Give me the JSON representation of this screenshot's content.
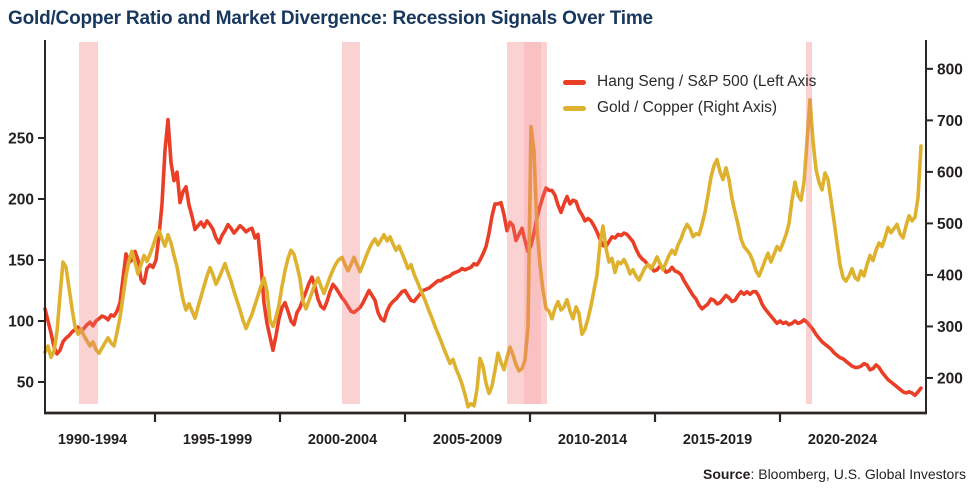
{
  "title": "Gold/Copper Ratio and Market Divergence: Recession Signals Over Time",
  "source": {
    "label": "Source",
    "text": ": Bloomberg, U.S. Global Investors"
  },
  "legend": [
    {
      "label": "Hang Seng / S&P 500 (Left Axis",
      "color": "#EA3E27"
    },
    {
      "label": "Gold / Copper (Right Axis)",
      "color": "#DEB22E"
    }
  ],
  "colors": {
    "red_line": "#EA3E27",
    "gold_line": "#DEB22E",
    "recession_band": "#F37373",
    "axis": "#2A2624",
    "title_navy": "#17375C",
    "text": "#231F20",
    "background": "#FFFFFF"
  },
  "chart_data": {
    "type": "line",
    "title": "Gold/Copper Ratio and Market Divergence: Recession Signals Over Time",
    "legend_position": "top-right",
    "grid": false,
    "x_axis": {
      "range_years": [
        1990.6,
        2025.84
      ],
      "tick_years": [
        1995,
        2000,
        2005,
        2010,
        2015,
        2020
      ],
      "bucket_edge_years": [
        1990,
        1995,
        2000,
        2005,
        2010,
        2015,
        2020,
        2025
      ],
      "bucket_labels": [
        "1990-1994",
        "1995-1999",
        "2000-2004",
        "2005-2009",
        "2010-2014",
        "2015-2019",
        "2020-2024"
      ]
    },
    "left_axis": {
      "series": "Hang Seng / S&P 500",
      "ticks": [
        50,
        100,
        150,
        200,
        250
      ],
      "range": [
        24.6,
        330.3
      ]
    },
    "right_axis": {
      "series": "Gold / Copper",
      "ticks": [
        200,
        300,
        400,
        500,
        600,
        700,
        800
      ],
      "range": [
        132,
        856
      ]
    },
    "recession_bands": [
      {
        "from": 1991.96,
        "to": 1992.72
      },
      {
        "from": 2002.48,
        "to": 2003.2
      },
      {
        "from": 2009.08,
        "to": 2010.68
      },
      {
        "from": 2021.04,
        "to": 2021.28
      }
    ],
    "recession_band_inner": {
      "from": 2009.76,
      "to": 2010.44
    },
    "series": [
      {
        "name": "Hang Seng / S&P 500",
        "axis": "left",
        "color": "#EA3E27",
        "x0": 1990.6,
        "dx": 0.12,
        "values": [
          110,
          100,
          90,
          79,
          73,
          76,
          83,
          86,
          88,
          91,
          93,
          95,
          91,
          94,
          97,
          99,
          96,
          100,
          102,
          104,
          103,
          101,
          105,
          104,
          108,
          115,
          135,
          155,
          148,
          150,
          157,
          150,
          134,
          131,
          143,
          146,
          144,
          150,
          170,
          196,
          240,
          265,
          230,
          215,
          222,
          197,
          206,
          210,
          195,
          186,
          175,
          178,
          181,
          177,
          182,
          179,
          175,
          168,
          164,
          170,
          174,
          179,
          176,
          172,
          175,
          178,
          176,
          173,
          175,
          176,
          168,
          171,
          145,
          115,
          98,
          87,
          76,
          88,
          102,
          111,
          115,
          108,
          100,
          97,
          107,
          111,
          118,
          124,
          131,
          136,
          128,
          118,
          112,
          110,
          116,
          124,
          130,
          127,
          123,
          119,
          116,
          112,
          108,
          107,
          109,
          111,
          115,
          120,
          125,
          121,
          117,
          107,
          102,
          100,
          108,
          113,
          116,
          118,
          121,
          124,
          125,
          121,
          117,
          116,
          119,
          122,
          125,
          126,
          127,
          129,
          131,
          133,
          133,
          135,
          136,
          137,
          139,
          140,
          141,
          143,
          142,
          143,
          144,
          147,
          146,
          150,
          155,
          161,
          172,
          186,
          196,
          196,
          197,
          187,
          174,
          181,
          178,
          166,
          171,
          176,
          166,
          157,
          162,
          172,
          185,
          194,
          202,
          209,
          207,
          207,
          203,
          195,
          189,
          196,
          202,
          196,
          199,
          198,
          191,
          187,
          182,
          184,
          182,
          178,
          173,
          167,
          162,
          161,
          165,
          169,
          168,
          171,
          170,
          172,
          171,
          168,
          165,
          159,
          154,
          151,
          149,
          146,
          144,
          141,
          142,
          145,
          144,
          140,
          141,
          144,
          141,
          140,
          138,
          133,
          129,
          125,
          121,
          118,
          113,
          110,
          112,
          114,
          118,
          117,
          114,
          115,
          118,
          121,
          119,
          116,
          117,
          121,
          124,
          122,
          124,
          122,
          124,
          124,
          120,
          114,
          110,
          107,
          104,
          101,
          98,
          100,
          98,
          99,
          97,
          98,
          100,
          98,
          99,
          101,
          99,
          96,
          93,
          89,
          86,
          83,
          81,
          79,
          77,
          74,
          72,
          70,
          69,
          67,
          65,
          63,
          62,
          62,
          63,
          65,
          64,
          60,
          61,
          64,
          62,
          58,
          55,
          52,
          50,
          48,
          46,
          44,
          42,
          41,
          42,
          41,
          39,
          42,
          45
        ]
      },
      {
        "name": "Gold / Copper",
        "axis": "right",
        "color": "#DEB22E",
        "x0": 1990.6,
        "dx": 0.12,
        "values": [
          250,
          262,
          240,
          252,
          290,
          360,
          425,
          415,
          375,
          335,
          300,
          285,
          295,
          282,
          272,
          262,
          270,
          255,
          248,
          258,
          268,
          278,
          268,
          262,
          288,
          318,
          358,
          398,
          428,
          446,
          425,
          402,
          420,
          438,
          426,
          440,
          456,
          474,
          486,
          470,
          456,
          478,
          462,
          438,
          416,
          382,
          352,
          332,
          344,
          330,
          316,
          338,
          358,
          378,
          398,
          414,
          400,
          382,
          394,
          408,
          422,
          404,
          388,
          368,
          350,
          332,
          312,
          296,
          310,
          324,
          342,
          360,
          378,
          394,
          368,
          312,
          300,
          318,
          342,
          378,
          408,
          432,
          448,
          440,
          418,
          392,
          348,
          334,
          350,
          366,
          382,
          394,
          378,
          364,
          380,
          396,
          410,
          422,
          430,
          434,
          420,
          408,
          420,
          434,
          420,
          406,
          420,
          436,
          450,
          462,
          470,
          458,
          468,
          478,
          466,
          474,
          460,
          448,
          456,
          442,
          428,
          412,
          420,
          402,
          388,
          374,
          360,
          346,
          330,
          316,
          300,
          286,
          272,
          256,
          242,
          228,
          236,
          218,
          204,
          188,
          168,
          144,
          150,
          146,
          178,
          238,
          222,
          190,
          170,
          184,
          215,
          248,
          230,
          216,
          240,
          260,
          245,
          226,
          214,
          218,
          235,
          300,
          688,
          640,
          490,
          420,
          370,
          335,
          330,
          315,
          335,
          348,
          332,
          338,
          352,
          330,
          315,
          338,
          325,
          285,
          295,
          315,
          340,
          370,
          400,
          460,
          495,
          452,
          425,
          432,
          405,
          425,
          422,
          430,
          418,
          402,
          410,
          398,
          390,
          402,
          414,
          420,
          412,
          422,
          435,
          422,
          410,
          424,
          438,
          448,
          440,
          458,
          470,
          486,
          498,
          490,
          474,
          480,
          478,
          498,
          522,
          555,
          590,
          612,
          624,
          600,
          585,
          608,
          585,
          548,
          522,
          498,
          470,
          455,
          448,
          440,
          426,
          408,
          398,
          412,
          428,
          442,
          425,
          440,
          455,
          448,
          462,
          478,
          500,
          545,
          580,
          555,
          545,
          580,
          660,
          740,
          660,
          605,
          580,
          565,
          598,
          585,
          545,
          505,
          462,
          420,
          395,
          388,
          398,
          412,
          395,
          390,
          408,
          398,
          420,
          438,
          428,
          448,
          462,
          455,
          472,
          492,
          482,
          490,
          498,
          480,
          472,
          495,
          515,
          505,
          512,
          550,
          650
        ]
      }
    ]
  }
}
